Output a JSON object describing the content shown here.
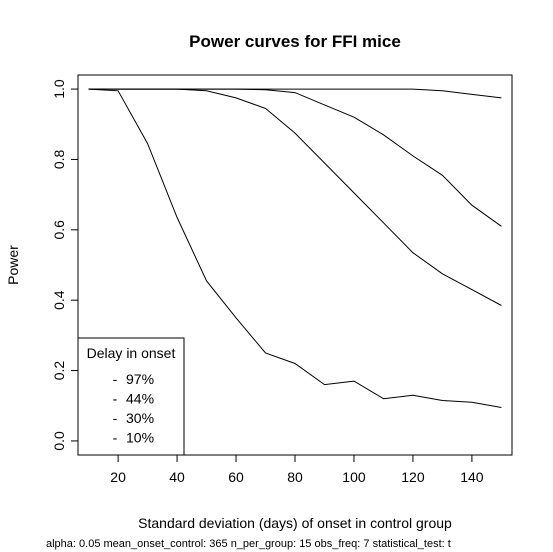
{
  "chart_data": {
    "type": "line",
    "title": "Power curves for FFI mice",
    "xlabel": "Standard deviation (days) of onset in control group",
    "ylabel": "Power",
    "xlim": [
      6.4,
      153.6
    ],
    "ylim": [
      -0.04,
      1.04
    ],
    "xticks": [
      20,
      40,
      60,
      80,
      100,
      120,
      140
    ],
    "yticks": [
      0.0,
      0.2,
      0.4,
      0.6,
      0.8,
      1.0
    ],
    "x": [
      10,
      20,
      30,
      40,
      50,
      60,
      70,
      80,
      90,
      100,
      110,
      120,
      130,
      140,
      150
    ],
    "series": [
      {
        "name": "97%",
        "values": [
          1.0,
          1.0,
          1.0,
          1.0,
          1.0,
          1.0,
          1.0,
          1.0,
          1.0,
          1.0,
          1.0,
          1.0,
          0.995,
          0.985,
          0.975
        ]
      },
      {
        "name": "44%",
        "values": [
          1.0,
          1.0,
          1.0,
          1.0,
          1.0,
          1.0,
          0.998,
          0.99,
          0.955,
          0.92,
          0.87,
          0.81,
          0.755,
          0.67,
          0.61
        ]
      },
      {
        "name": "30%",
        "values": [
          1.0,
          1.0,
          1.0,
          1.0,
          0.995,
          0.975,
          0.945,
          0.875,
          0.79,
          0.705,
          0.62,
          0.535,
          0.475,
          0.43,
          0.385
        ]
      },
      {
        "name": "10%",
        "values": [
          1.0,
          0.995,
          0.845,
          0.635,
          0.455,
          0.35,
          0.25,
          0.22,
          0.16,
          0.17,
          0.12,
          0.13,
          0.115,
          0.11,
          0.095
        ]
      }
    ],
    "legend": {
      "title": "Delay in onset",
      "position": "bottom-left",
      "symbol": "-",
      "entries": [
        "97%",
        "44%",
        "30%",
        "10%"
      ]
    },
    "footnote": "alpha: 0.05  mean_onset_control: 365  n_per_group: 15  obs_freq: 7  statistical_test: t",
    "grid": false,
    "line_color": "#000000"
  }
}
